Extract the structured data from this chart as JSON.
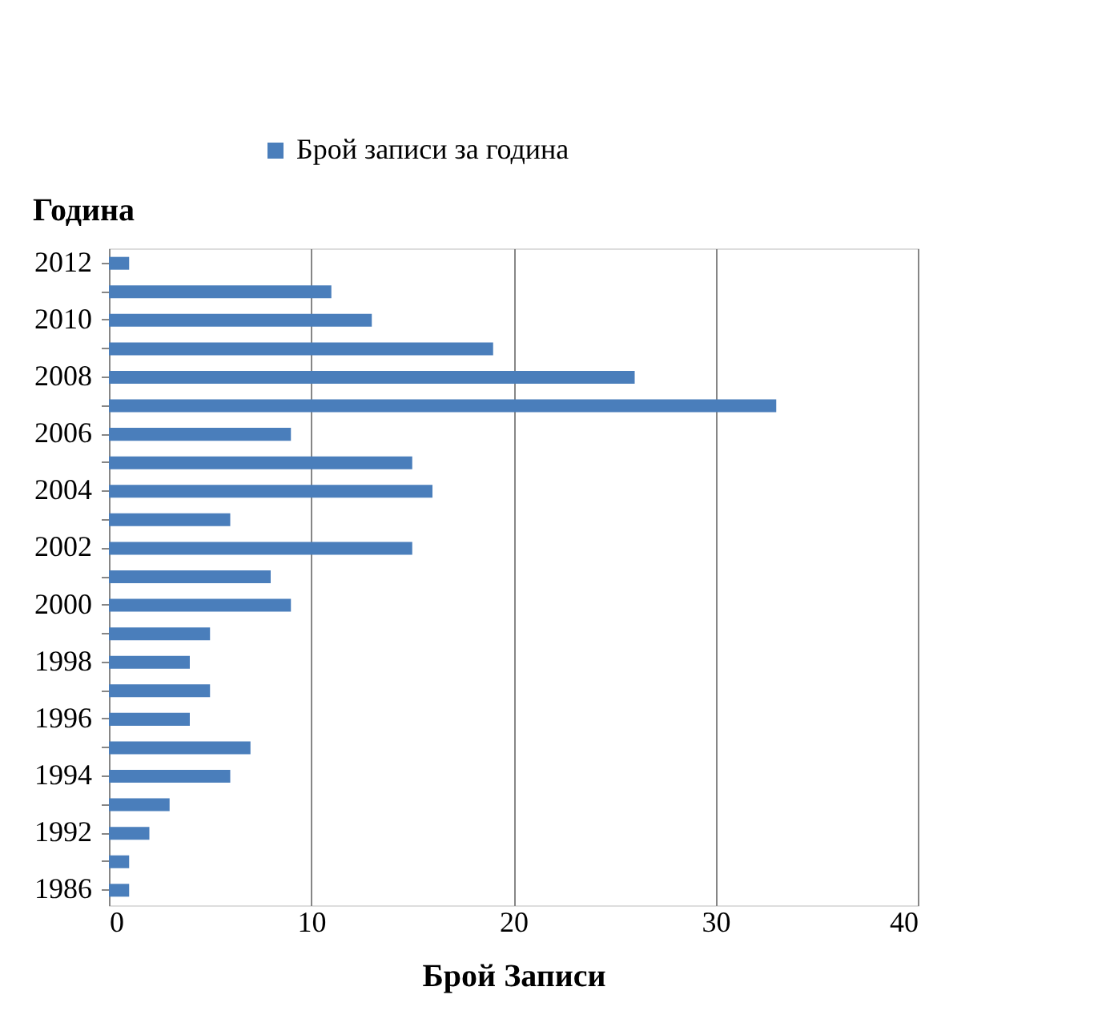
{
  "chart_data": {
    "type": "bar",
    "orientation": "horizontal",
    "xlabel": "Брой Записи",
    "ylabel": "Година",
    "legend": "top",
    "categories": [
      "2012",
      null,
      "2010",
      null,
      "2008",
      null,
      "2006",
      null,
      "2004",
      null,
      "2002",
      null,
      "2000",
      null,
      "1998",
      null,
      "1996",
      null,
      "1994",
      null,
      "1992",
      null,
      "1986"
    ],
    "series": [
      {
        "name": "Брой записи за година",
        "color": "#4a7ebb",
        "values": [
          1,
          11,
          13,
          19,
          26,
          33,
          9,
          15,
          16,
          6,
          15,
          8,
          9,
          5,
          4,
          5,
          4,
          7,
          6,
          3,
          2,
          1,
          1
        ]
      }
    ],
    "xlim": [
      0,
      40
    ],
    "xticks": [
      0,
      10,
      20,
      30,
      40
    ],
    "grid": "x"
  }
}
